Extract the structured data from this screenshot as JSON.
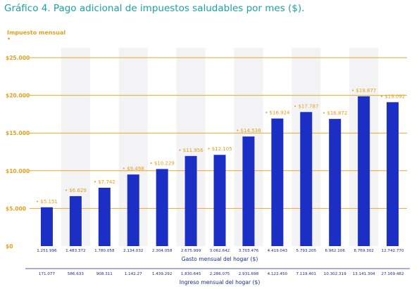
{
  "title": "Gráfico 4. Pago adicional de impuestos saludables por mes ($).",
  "chart_data": {
    "type": "bar",
    "title": "Gráfico 4. Pago adicional de impuestos saludables por mes ($).",
    "ylabel": "Impuesto mensual",
    "xlabel": "Gasto mensual del hogar ($)",
    "xlabel2": "Ingreso mensual del hogar ($)",
    "ylim": [
      0,
      25000
    ],
    "yticks": [
      0,
      5000,
      10000,
      15000,
      20000,
      25000
    ],
    "ytick_labels": [
      "$0",
      "$5.000",
      "$10.000",
      "$15.000",
      "$20.000",
      "$25.000"
    ],
    "categories": [
      "1.251.996",
      "1.483.372",
      "1.780.058",
      "2.134.032",
      "2.304.058",
      "2.675.999",
      "3.062.642",
      "3.703.476",
      "4.419.043",
      "5.793.205",
      "6.962.106",
      "8.769.302",
      "12.742.770"
    ],
    "categories2": [
      "171.077",
      "586.633",
      "908.311",
      "1.142.27",
      "1.439.292",
      "1.830.645",
      "2.286.075",
      "2.931.698",
      "4.122.450",
      "7.119.401",
      "10.302.319",
      "13.141.304",
      "27.169.482"
    ],
    "values": [
      5151,
      6629,
      7742,
      9498,
      10229,
      11956,
      12105,
      14538,
      16924,
      17787,
      16872,
      19877,
      19092
    ],
    "data_labels": [
      "$5.151",
      "$6.629",
      "$7.742",
      "$9.498",
      "$10.229",
      "$11.956",
      "$12.105",
      "$14.538",
      "$16.924",
      "$17.787",
      "$16.872",
      "$19.877",
      "$19.092"
    ],
    "colors": {
      "bar": "#1b2fc4",
      "grid": "#e8a825",
      "axis_text": "#e0a21c",
      "band": "#f3f3f6",
      "title": "#1aa3a3"
    }
  }
}
